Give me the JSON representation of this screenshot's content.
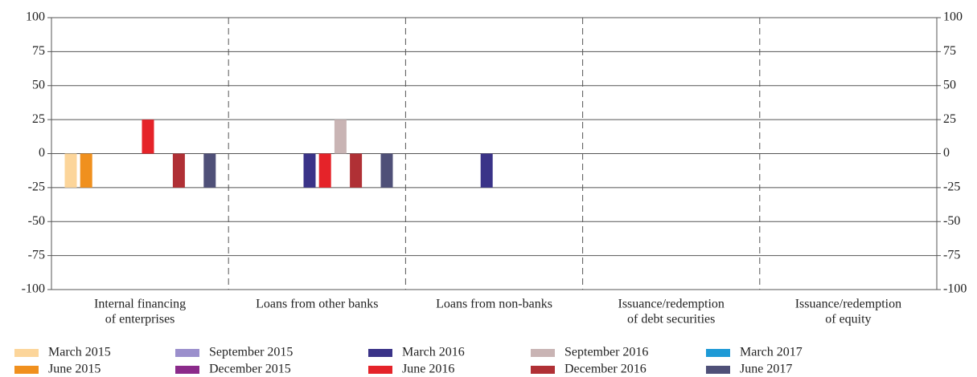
{
  "chart_data": {
    "type": "bar",
    "categories": [
      [
        "Internal financing",
        "of enterprises"
      ],
      [
        "Loans from other banks"
      ],
      [
        "Loans from non-banks"
      ],
      [
        "Issuance/redemption",
        "of debt securities"
      ],
      [
        "Issuance/redemption",
        "of equity"
      ]
    ],
    "series": [
      {
        "name": "March 2015",
        "color": "#fcd59a",
        "values": [
          -25,
          0,
          0,
          0,
          0
        ]
      },
      {
        "name": "June 2015",
        "color": "#f0901e",
        "values": [
          -25,
          0,
          0,
          0,
          0
        ]
      },
      {
        "name": "September 2015",
        "color": "#9b8fcc",
        "values": [
          0,
          0,
          0,
          0,
          0
        ]
      },
      {
        "name": "December 2015",
        "color": "#8b2a8a",
        "values": [
          0,
          0,
          0,
          0,
          0
        ]
      },
      {
        "name": "March 2016",
        "color": "#3a3388",
        "values": [
          0,
          -25,
          -25,
          0,
          0
        ]
      },
      {
        "name": "June 2016",
        "color": "#e52329",
        "values": [
          25,
          -25,
          0,
          0,
          0
        ]
      },
      {
        "name": "September 2016",
        "color": "#c9b4b4",
        "values": [
          0,
          25,
          0,
          0,
          0
        ]
      },
      {
        "name": "December 2016",
        "color": "#b03035",
        "values": [
          -25,
          -25,
          0,
          0,
          0
        ]
      },
      {
        "name": "March 2017",
        "color": "#1e9ad6",
        "values": [
          0,
          0,
          0,
          0,
          0
        ]
      },
      {
        "name": "June 2017",
        "color": "#4f5078",
        "values": [
          -25,
          -25,
          0,
          0,
          0
        ]
      }
    ],
    "ylim": [
      -100,
      100
    ],
    "yticks": [
      -100,
      -75,
      -50,
      -25,
      0,
      25,
      50,
      75,
      100
    ],
    "y2lim": [
      -100,
      100
    ],
    "y2ticks": [
      -100,
      -75,
      -50,
      -25,
      0,
      25,
      50,
      75,
      100
    ],
    "grid": true,
    "legend": "bottom"
  }
}
